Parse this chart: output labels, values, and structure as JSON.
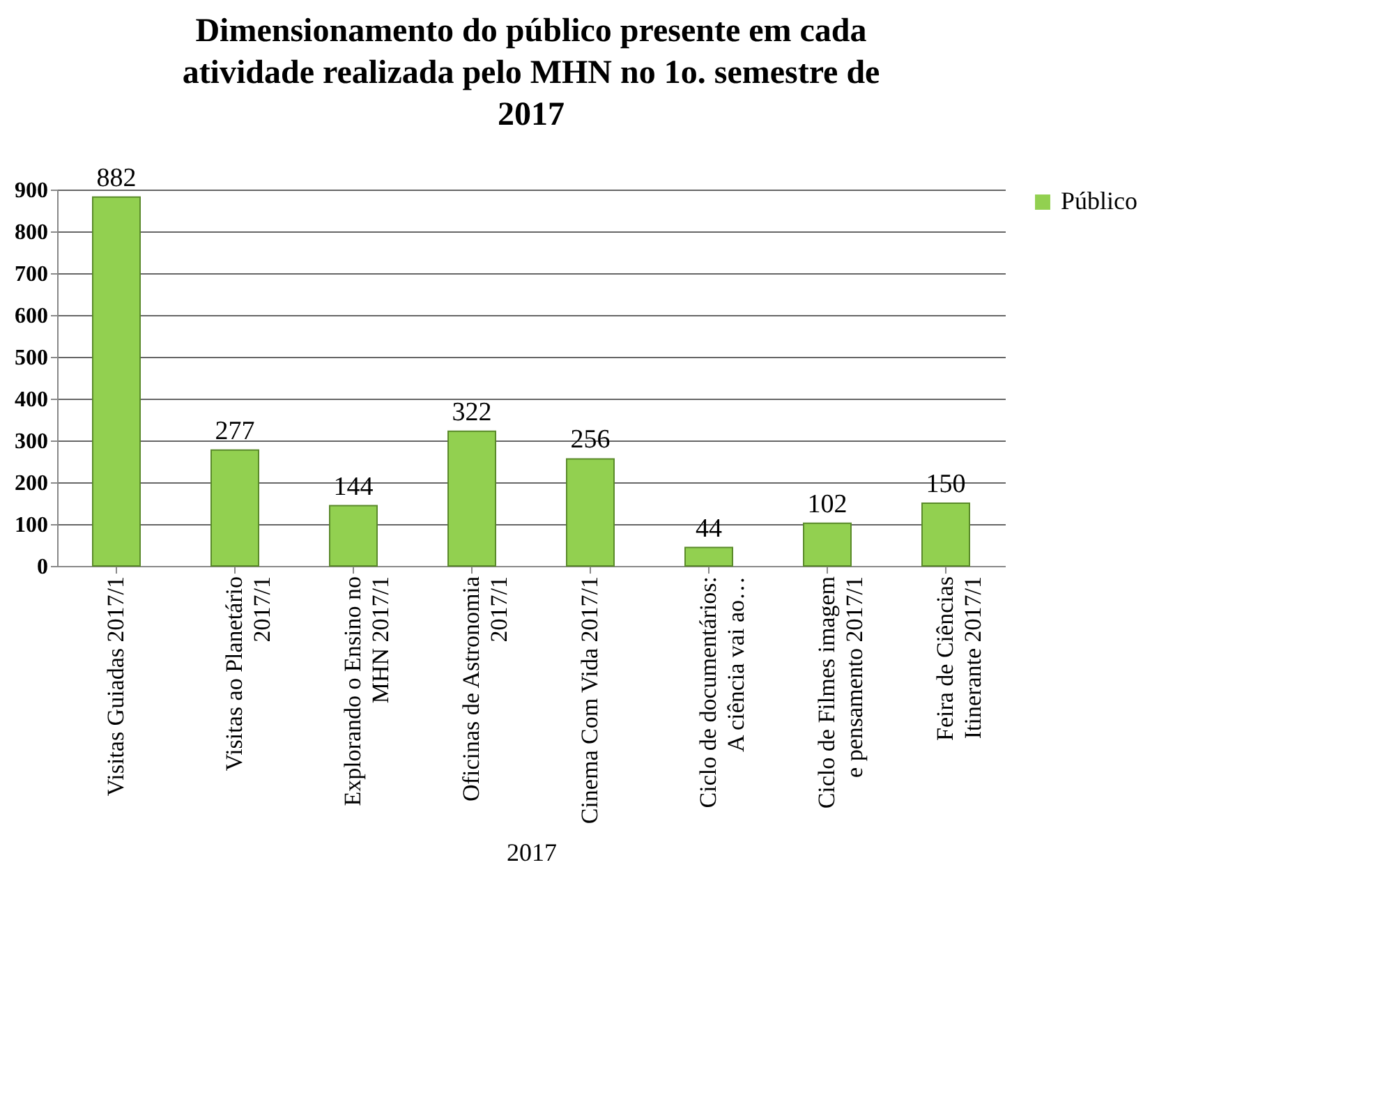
{
  "chart_data": {
    "type": "bar",
    "title": "Dimensionamento do público presente em cada atividade realizada pelo MHN no 1o. semestre de 2017",
    "xlabel": "2017",
    "categories": [
      "Visitas Guiadas 2017/1",
      "Visitas ao Planetário 2017/1",
      "Explorando o Ensino no MHN 2017/1",
      "Oficinas de Astronomia 2017/1",
      "Cinema Com Vida 2017/1",
      "Ciclo de documentários: A ciência vai ao…",
      "Ciclo de Filmes imagem e pensamento 2017/1",
      "Feira de Ciências Itinerante 2017/1"
    ],
    "series": [
      {
        "name": "Público",
        "color": "#92d050",
        "values": [
          882,
          277,
          144,
          322,
          256,
          44,
          102,
          150
        ]
      }
    ],
    "ylim": [
      0,
      900
    ],
    "yticks": [
      0,
      100,
      200,
      300,
      400,
      500,
      600,
      700,
      800,
      900
    ],
    "grid": "y",
    "legend": "right",
    "data_labels": true
  }
}
